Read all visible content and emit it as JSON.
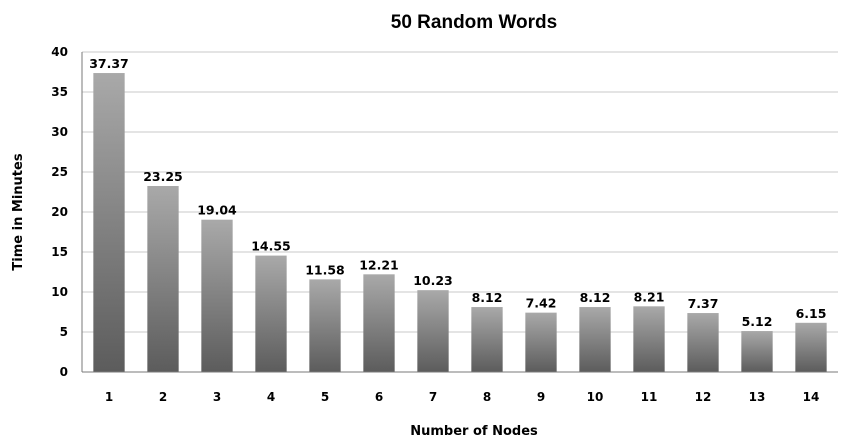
{
  "chart_data": {
    "type": "bar",
    "title": "50 Random Words",
    "xlabel": "Number of Nodes",
    "ylabel": "Time in Minutes",
    "categories": [
      "1",
      "2",
      "3",
      "4",
      "5",
      "6",
      "7",
      "8",
      "9",
      "10",
      "11",
      "12",
      "13",
      "14"
    ],
    "values": [
      37.37,
      23.25,
      19.04,
      14.55,
      11.58,
      12.21,
      10.23,
      8.12,
      7.42,
      8.12,
      8.21,
      7.37,
      5.12,
      6.15
    ],
    "data_labels": [
      "37.37",
      "23.25",
      "19.04",
      "14.55",
      "11.58",
      "12.21",
      "10.23",
      "8.12",
      "7.42",
      "8.12",
      "8.21",
      "7.37",
      "5.12",
      "6.15"
    ],
    "ylim": [
      0,
      40
    ],
    "yticks": [
      0,
      5,
      10,
      15,
      20,
      25,
      30,
      35,
      40
    ],
    "grid": true,
    "bar_color_top": "#a9a9a9",
    "bar_color_bottom": "#5c5c5c"
  }
}
